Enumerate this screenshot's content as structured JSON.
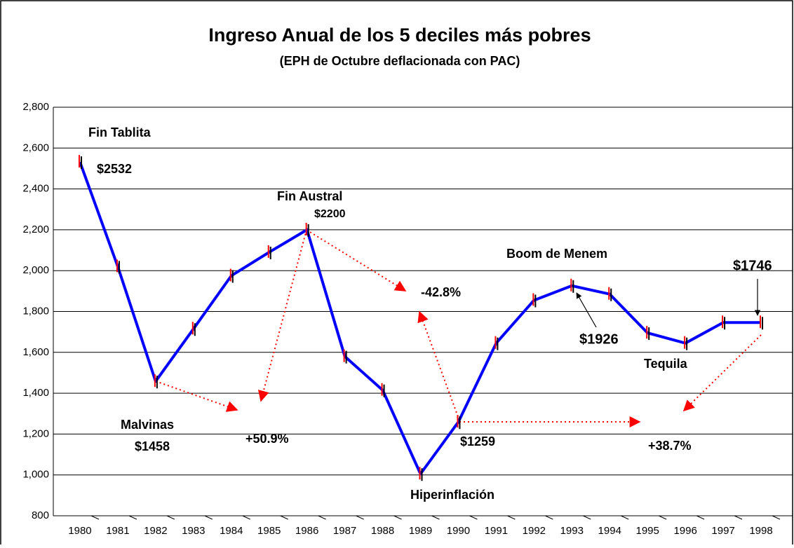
{
  "chart_data": {
    "type": "line",
    "title": "Ingreso Anual de los 5 deciles más pobres",
    "subtitle": "(EPH de Octubre deflacionada con PAC)",
    "categories": [
      "1980",
      "1981",
      "1982",
      "1983",
      "1984",
      "1985",
      "1986",
      "1987",
      "1988",
      "1989",
      "1990",
      "1991",
      "1992",
      "1993",
      "1994",
      "1995",
      "1996",
      "1997",
      "1998"
    ],
    "series": [
      {
        "name": "Ingreso",
        "color": "#0000ff",
        "values": [
          2532,
          2020,
          1458,
          1715,
          1975,
          2090,
          2200,
          1580,
          1415,
          1005,
          1259,
          1645,
          1855,
          1926,
          1885,
          1695,
          1645,
          1746,
          1746
        ]
      }
    ],
    "ylim": [
      800,
      2800
    ],
    "yticks": [
      {
        "value": 800,
        "label": "800"
      },
      {
        "value": 1000,
        "label": "1,000"
      },
      {
        "value": 1200,
        "label": "1,200"
      },
      {
        "value": 1400,
        "label": "1,400"
      },
      {
        "value": 1600,
        "label": "1,600"
      },
      {
        "value": 1800,
        "label": "1,800"
      },
      {
        "value": 2000,
        "label": "2,000"
      },
      {
        "value": 2200,
        "label": "2,200"
      },
      {
        "value": 2400,
        "label": "2,400"
      },
      {
        "value": 2600,
        "label": "2,600"
      },
      {
        "value": 2800,
        "label": "2,800"
      }
    ],
    "grid": true,
    "annotations": [
      "Fin Tablita",
      "$2532",
      "Fin Austral",
      "$2200",
      "Malvinas",
      "$1458",
      "+50.9%",
      "-42.8%",
      "Boom de Menem",
      "$1926",
      "$1746",
      "Tequila",
      "$1259",
      "+38.7%",
      "Hiperinflación"
    ]
  }
}
